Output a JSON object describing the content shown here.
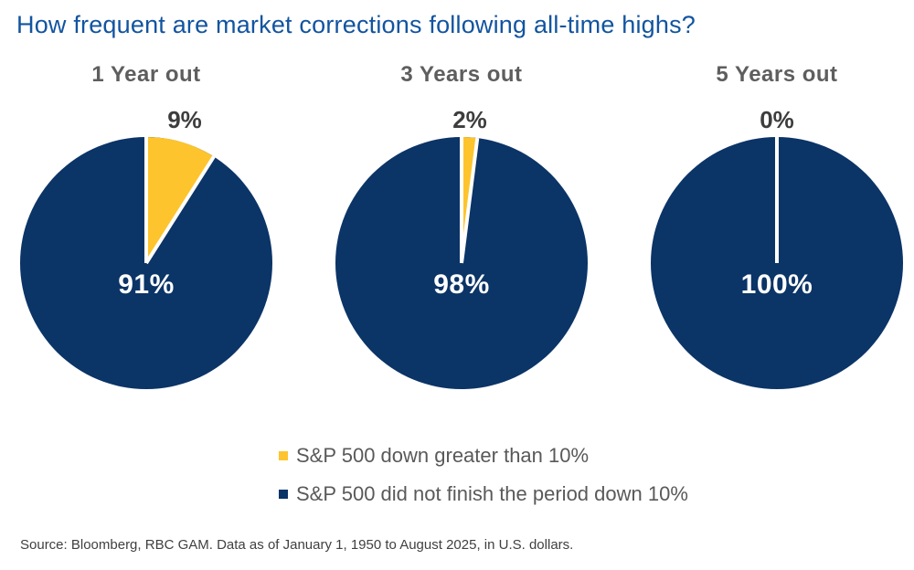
{
  "source": "Source: Bloomberg, RBC GAM. Data as of January 1, 1950 to August 2025, in U.S. dollars.",
  "colors": {
    "title_blue": "#1254A0",
    "navy": "#0B3467",
    "yellow": "#FDC42D",
    "heading_gray": "#5E5E5E",
    "slice_label_dark": "#3D3D3D",
    "legend_text_gray": "#595959",
    "separator_white": "#FFFFFF"
  },
  "chart_data": {
    "type": "pie",
    "title": "How frequent are market corrections following all-time highs?",
    "legend_position": "bottom",
    "legend": [
      {
        "label": "S&P 500 down greater than 10%",
        "color": "#FDC42D"
      },
      {
        "label": "S&P 500 did not finish the period down 10%",
        "color": "#0B3467"
      }
    ],
    "charts": [
      {
        "label": "1 Year out",
        "down_pct": 9,
        "down_label": "9%",
        "remain_pct": 91,
        "remain_label": "91%"
      },
      {
        "label": "3 Years out",
        "down_pct": 2,
        "down_label": "2%",
        "remain_pct": 98,
        "remain_label": "98%"
      },
      {
        "label": "5 Years out",
        "down_pct": 0,
        "down_label": "0%",
        "remain_pct": 100,
        "remain_label": "100%"
      }
    ]
  }
}
